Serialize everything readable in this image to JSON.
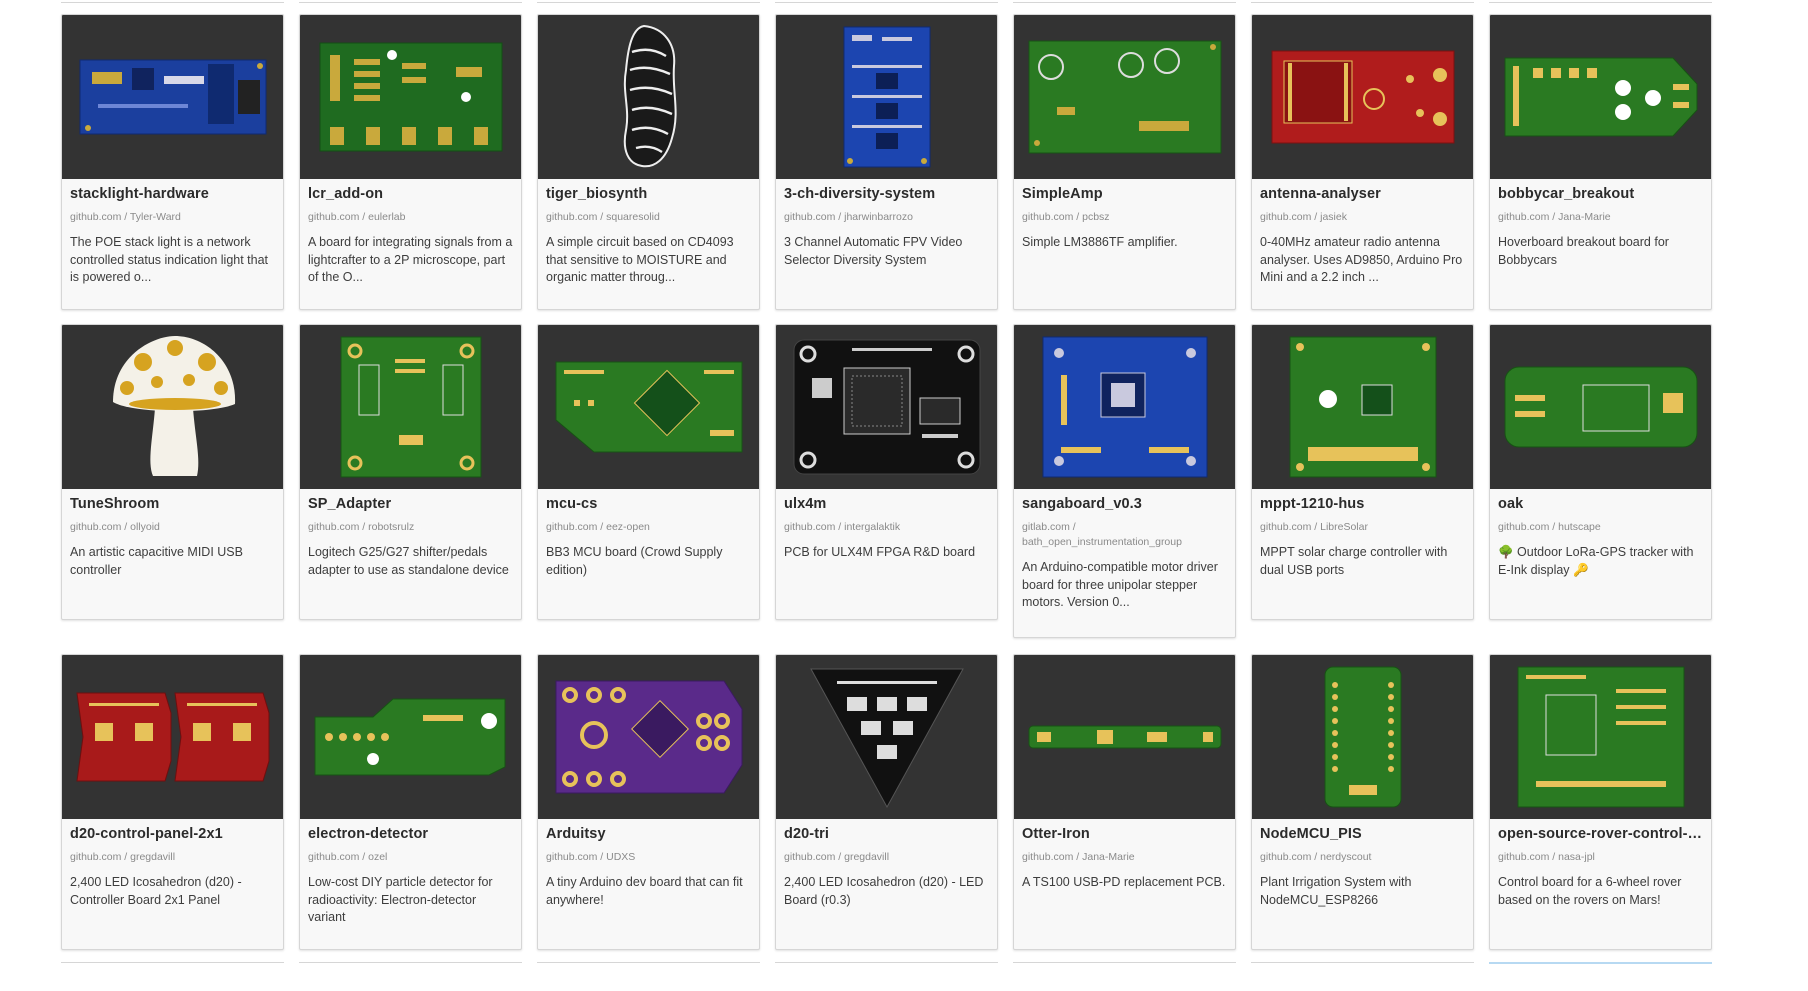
{
  "colors": {
    "card_bg": "#f8f8f8",
    "thumb_bg": "#333333",
    "title": "#2b2b2b",
    "source": "#8a8a8a",
    "desc": "#3d3d3d"
  },
  "projects": [
    {
      "title": "stacklight-hardware",
      "source": "github.com / Tyler-Ward",
      "desc": "The POE stack light is a network controlled status indication light that is powered o...",
      "icon": "blue-pcb-thumbnail"
    },
    {
      "title": "lcr_add-on",
      "source": "github.com / eulerlab",
      "desc": "A board for integrating signals from a lightcrafter to a 2P microscope, part of the O...",
      "icon": "green-pcb-thumbnail"
    },
    {
      "title": "tiger_biosynth",
      "source": "github.com / squaresolid",
      "desc": "A simple circuit based on CD4093 that sensitive to MOISTURE and organic matter throug...",
      "icon": "tiger-pcb-thumbnail"
    },
    {
      "title": "3-ch-diversity-system",
      "source": "github.com / jharwinbarrozo",
      "desc": "3 Channel Automatic FPV Video Selector Diversity System",
      "icon": "blue-pcb-thumbnail"
    },
    {
      "title": "SimpleAmp",
      "source": "github.com / pcbsz",
      "desc": "Simple LM3886TF amplifier.",
      "icon": "green-pcb-thumbnail"
    },
    {
      "title": "antenna-analyser",
      "source": "github.com / jasiek",
      "desc": "0-40MHz amateur radio antenna analyser. Uses AD9850, Arduino Pro Mini and a 2.2 inch ...",
      "icon": "red-pcb-thumbnail"
    },
    {
      "title": "bobbycar_breakout",
      "source": "github.com / Jana-Marie",
      "desc": "Hoverboard breakout board for Bobbycars",
      "icon": "green-pcb-thumbnail"
    },
    {
      "title": "TuneShroom",
      "source": "github.com / ollyoid",
      "desc": "An artistic capacitive MIDI USB controller",
      "icon": "mushroom-pcb-thumbnail"
    },
    {
      "title": "SP_Adapter",
      "source": "github.com / robotsrulz",
      "desc": "Logitech G25/G27 shifter/pedals adapter to use as standalone device",
      "icon": "green-pcb-thumbnail"
    },
    {
      "title": "mcu-cs",
      "source": "github.com / eez-open",
      "desc": "BB3 MCU board (Crowd Supply edition)",
      "icon": "green-pcb-thumbnail"
    },
    {
      "title": "ulx4m",
      "source": "github.com / intergalaktik",
      "desc": "PCB for ULX4M FPGA R&D board",
      "icon": "black-pcb-thumbnail"
    },
    {
      "title": "sangaboard_v0.3",
      "source": "gitlab.com / bath_open_instrumentation_group",
      "desc": "An Arduino-compatible motor driver board for three unipolar stepper motors. Version 0...",
      "icon": "blue-pcb-thumbnail"
    },
    {
      "title": "mppt-1210-hus",
      "source": "github.com / LibreSolar",
      "desc": "MPPT solar charge controller with dual USB ports",
      "icon": "green-pcb-thumbnail"
    },
    {
      "title": "oak",
      "source": "github.com / hutscape",
      "desc": "🌳 Outdoor LoRa-GPS tracker with E-Ink display 🔑",
      "icon": "green-pcb-thumbnail"
    },
    {
      "title": "d20-control-panel-2x1",
      "source": "github.com / gregdavill",
      "desc": "2,400 LED Icosahedron (d20) - Controller Board 2x1 Panel",
      "icon": "red-pcb-thumbnail"
    },
    {
      "title": "electron-detector",
      "source": "github.com / ozel",
      "desc": "Low-cost DIY particle detector for radioactivity: Electron-detector variant",
      "icon": "green-pcb-thumbnail"
    },
    {
      "title": "Arduitsy",
      "source": "github.com / UDXS",
      "desc": "A tiny Arduino dev board that can fit anywhere!",
      "icon": "purple-pcb-thumbnail"
    },
    {
      "title": "d20-tri",
      "source": "github.com / gregdavill",
      "desc": "2,400 LED Icosahedron (d20) - LED Board (r0.3)",
      "icon": "black-triangle-pcb-thumbnail"
    },
    {
      "title": "Otter-Iron",
      "source": "github.com / Jana-Marie",
      "desc": "A TS100 USB-PD replacement PCB.",
      "icon": "green-pcb-thumbnail"
    },
    {
      "title": "NodeMCU_PIS",
      "source": "github.com / nerdyscout",
      "desc": "Plant Irrigation System with NodeMCU_ESP8266",
      "icon": "green-pcb-thumbnail"
    },
    {
      "title": "open-source-rover-control-b...",
      "source": "github.com / nasa-jpl",
      "desc": "Control board for a 6-wheel rover based on the rovers on Mars!",
      "icon": "green-pcb-thumbnail"
    }
  ]
}
